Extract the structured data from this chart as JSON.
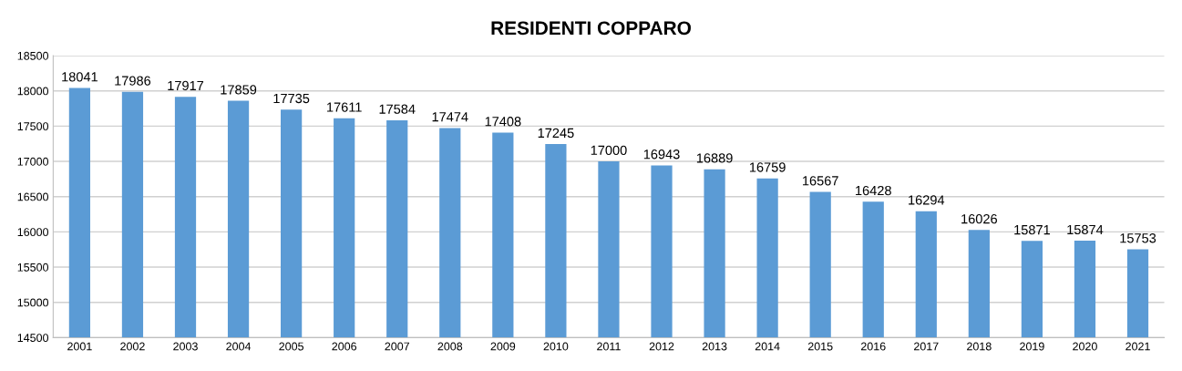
{
  "chart_data": {
    "type": "bar",
    "title": "RESIDENTI COPPARO",
    "categories": [
      "2001",
      "2002",
      "2003",
      "2004",
      "2005",
      "2006",
      "2007",
      "2008",
      "2009",
      "2010",
      "2011",
      "2012",
      "2013",
      "2014",
      "2015",
      "2016",
      "2017",
      "2018",
      "2019",
      "2020",
      "2021"
    ],
    "values": [
      18041,
      17986,
      17917,
      17859,
      17735,
      17611,
      17584,
      17474,
      17408,
      17245,
      17000,
      16943,
      16889,
      16759,
      16567,
      16428,
      16294,
      16026,
      15871,
      15874,
      15753
    ],
    "color": "#5b9bd5",
    "ylim": [
      14500,
      18500
    ],
    "yticks": [
      14500,
      15000,
      15500,
      16000,
      16500,
      17000,
      17500,
      18000,
      18500
    ],
    "grid": "y",
    "data_labels": true
  }
}
